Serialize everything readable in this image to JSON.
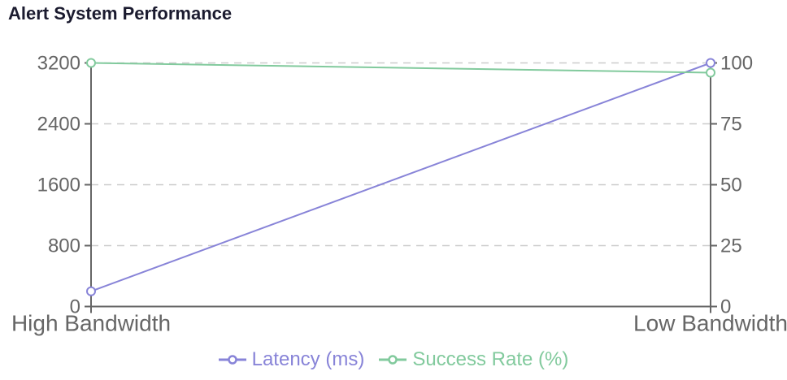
{
  "chart_data": {
    "type": "line",
    "title": "Alert System Performance",
    "title_color": "#1b1b2f",
    "categories": [
      "High Bandwidth",
      "Low Bandwidth"
    ],
    "series": [
      {
        "name": "Latency (ms)",
        "yaxis": "left",
        "color": "#8884d8",
        "values": [
          200,
          3200
        ]
      },
      {
        "name": "Success Rate (%)",
        "yaxis": "right",
        "color": "#82ca9d",
        "values": [
          100,
          96
        ]
      }
    ],
    "left_axis": {
      "min": 0,
      "max": 3200,
      "ticks": [
        0,
        800,
        1600,
        2400,
        3200
      ]
    },
    "right_axis": {
      "min": 0,
      "max": 100,
      "ticks": [
        0,
        25,
        50,
        75,
        100
      ]
    },
    "grid": {
      "horizontal": true,
      "style": "dashed",
      "color": "#cccccc"
    },
    "axis_color": "#666666",
    "tick_label_color": "#666666",
    "legend_position": "bottom-center",
    "background": "#ffffff"
  }
}
